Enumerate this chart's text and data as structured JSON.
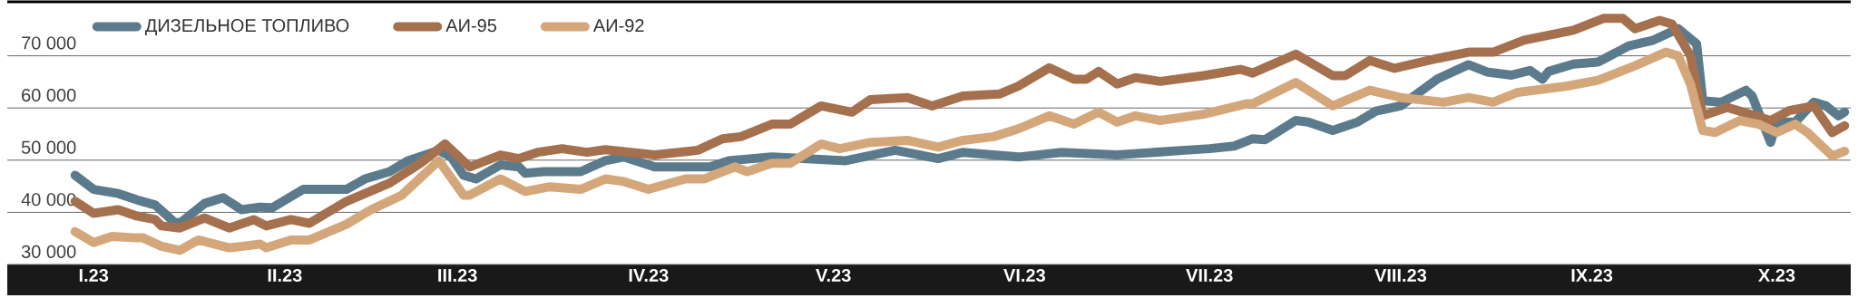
{
  "chart_data": {
    "type": "line",
    "xlim": [
      "2022-12-18",
      "2023-10-13"
    ],
    "ylim": [
      30000,
      80000
    ],
    "xticks": [
      {
        "value": "2023-01-01",
        "label": "I.23"
      },
      {
        "value": "2023-02-01",
        "label": "II.23"
      },
      {
        "value": "2023-03-01",
        "label": "III.23"
      },
      {
        "value": "2023-04-01",
        "label": "IV.23"
      },
      {
        "value": "2023-05-01",
        "label": "V.23"
      },
      {
        "value": "2023-06-01",
        "label": "VI.23"
      },
      {
        "value": "2023-07-01",
        "label": "VII.23"
      },
      {
        "value": "2023-08-01",
        "label": "VIII.23"
      },
      {
        "value": "2023-09-01",
        "label": "IX.23"
      },
      {
        "value": "2023-10-01",
        "label": "X.23"
      }
    ],
    "yticks": [
      {
        "value": 30000,
        "label": "30 000"
      },
      {
        "value": 40000,
        "label": "40 000"
      },
      {
        "value": 50000,
        "label": "50 000"
      },
      {
        "value": 60000,
        "label": "60 000"
      },
      {
        "value": 70000,
        "label": "70 000"
      }
    ],
    "grid": "y",
    "legend": "top left",
    "line_style": "solid",
    "series": [
      {
        "name": "ДИЗЕЛЬНОЕ ТОПЛИВО",
        "color": "#5b7b8c",
        "x": [
          "2022-12-29",
          "2023-01-01",
          "2023-01-05",
          "2023-01-08",
          "2023-01-11",
          "2023-01-14",
          "2023-01-15",
          "2023-01-19",
          "2023-01-22",
          "2023-01-25",
          "2023-01-28",
          "2023-01-30",
          "2023-02-04",
          "2023-02-09",
          "2023-02-11",
          "2023-02-14",
          "2023-02-18",
          "2023-02-21",
          "2023-02-26",
          "2023-02-28",
          "2023-03-02",
          "2023-03-04",
          "2023-03-08",
          "2023-03-11",
          "2023-03-12",
          "2023-03-15",
          "2023-03-21",
          "2023-03-25",
          "2023-03-28",
          "2023-04-02",
          "2023-04-11",
          "2023-04-14",
          "2023-04-21",
          "2023-04-26",
          "2023-05-03",
          "2023-05-11",
          "2023-05-18",
          "2023-05-22",
          "2023-05-31",
          "2023-06-07",
          "2023-06-16",
          "2023-06-27",
          "2023-07-01",
          "2023-07-05",
          "2023-07-08",
          "2023-07-10",
          "2023-07-15",
          "2023-07-17",
          "2023-07-21",
          "2023-07-25",
          "2023-07-28",
          "2023-08-01",
          "2023-08-07",
          "2023-08-12",
          "2023-08-15",
          "2023-08-19",
          "2023-08-22",
          "2023-08-24",
          "2023-08-25",
          "2023-08-29",
          "2023-09-02",
          "2023-09-07",
          "2023-09-11",
          "2023-09-15",
          "2023-09-18",
          "2023-09-19",
          "2023-09-22",
          "2023-09-26",
          "2023-09-27",
          "2023-09-30",
          "2023-10-01",
          "2023-10-04",
          "2023-10-07",
          "2023-10-09",
          "2023-10-11",
          "2023-10-12"
        ],
        "values": [
          47100,
          44400,
          43600,
          42400,
          41400,
          38200,
          37900,
          41700,
          42800,
          40500,
          41000,
          40900,
          44400,
          44400,
          44400,
          46400,
          47800,
          49900,
          51900,
          50600,
          47100,
          46400,
          49100,
          48700,
          47500,
          47800,
          47800,
          49900,
          50600,
          48700,
          48700,
          49900,
          50600,
          50300,
          49900,
          51900,
          50300,
          51500,
          50600,
          51500,
          51000,
          51900,
          52200,
          52700,
          54100,
          53900,
          57600,
          57300,
          55700,
          57300,
          59400,
          60400,
          65600,
          68300,
          66900,
          66300,
          67200,
          65500,
          67000,
          68400,
          68800,
          71900,
          73000,
          75200,
          72300,
          61400,
          61100,
          63400,
          62300,
          53400,
          57300,
          57300,
          61100,
          60400,
          58500,
          59200
        ]
      },
      {
        "name": "АИ-95",
        "color": "#a5704d",
        "x": [
          "2022-12-29",
          "2023-01-01",
          "2023-01-05",
          "2023-01-08",
          "2023-01-11",
          "2023-01-12",
          "2023-01-15",
          "2023-01-19",
          "2023-01-23",
          "2023-01-27",
          "2023-01-29",
          "2023-02-02",
          "2023-02-05",
          "2023-02-11",
          "2023-02-18",
          "2023-02-23",
          "2023-02-27",
          "2023-03-03",
          "2023-03-08",
          "2023-03-11",
          "2023-03-14",
          "2023-03-18",
          "2023-03-22",
          "2023-03-25",
          "2023-04-02",
          "2023-04-09",
          "2023-04-13",
          "2023-04-16",
          "2023-04-21",
          "2023-04-24",
          "2023-04-29",
          "2023-05-04",
          "2023-05-07",
          "2023-05-13",
          "2023-05-17",
          "2023-05-22",
          "2023-05-28",
          "2023-05-31",
          "2023-06-05",
          "2023-06-09",
          "2023-06-11",
          "2023-06-13",
          "2023-06-16",
          "2023-06-19",
          "2023-06-23",
          "2023-06-30",
          "2023-07-06",
          "2023-07-08",
          "2023-07-15",
          "2023-07-21",
          "2023-07-23",
          "2023-07-27",
          "2023-07-31",
          "2023-08-07",
          "2023-08-12",
          "2023-08-16",
          "2023-08-21",
          "2023-08-29",
          "2023-09-03",
          "2023-09-06",
          "2023-09-08",
          "2023-09-12",
          "2023-09-14",
          "2023-09-17",
          "2023-09-19",
          "2023-09-23",
          "2023-09-30",
          "2023-10-03",
          "2023-10-07",
          "2023-10-10",
          "2023-10-12"
        ],
        "values": [
          42100,
          39800,
          40500,
          39300,
          38600,
          37400,
          37000,
          38900,
          37000,
          38600,
          37400,
          38600,
          37900,
          42100,
          45600,
          49400,
          53100,
          48700,
          51000,
          50300,
          51500,
          52200,
          51500,
          52000,
          51000,
          51900,
          54100,
          54500,
          56900,
          56900,
          60400,
          59200,
          61600,
          62000,
          60400,
          62300,
          62700,
          64200,
          67700,
          65500,
          65500,
          67000,
          64600,
          65800,
          65100,
          66200,
          67400,
          66700,
          70300,
          66200,
          66200,
          69100,
          67600,
          69500,
          70700,
          70700,
          73000,
          74900,
          77200,
          77200,
          75200,
          76800,
          76100,
          70000,
          58500,
          60100,
          57600,
          59500,
          60400,
          55300,
          56600
        ]
      },
      {
        "name": "АИ-92",
        "color": "#d4a77b",
        "x": [
          "2022-12-29",
          "2023-01-01",
          "2023-01-04",
          "2023-01-08",
          "2023-01-09",
          "2023-01-12",
          "2023-01-15",
          "2023-01-18",
          "2023-01-23",
          "2023-01-28",
          "2023-01-29",
          "2023-02-02",
          "2023-02-05",
          "2023-02-11",
          "2023-02-15",
          "2023-02-20",
          "2023-02-26",
          "2023-03-02",
          "2023-03-03",
          "2023-03-08",
          "2023-03-12",
          "2023-03-16",
          "2023-03-21",
          "2023-03-25",
          "2023-03-28",
          "2023-04-01",
          "2023-04-07",
          "2023-04-10",
          "2023-04-15",
          "2023-04-17",
          "2023-04-21",
          "2023-04-24",
          "2023-04-29",
          "2023-05-02",
          "2023-05-07",
          "2023-05-13",
          "2023-05-18",
          "2023-05-22",
          "2023-05-27",
          "2023-05-31",
          "2023-06-05",
          "2023-06-09",
          "2023-06-13",
          "2023-06-16",
          "2023-06-19",
          "2023-06-23",
          "2023-06-30",
          "2023-07-07",
          "2023-07-08",
          "2023-07-15",
          "2023-07-21",
          "2023-07-27",
          "2023-08-01",
          "2023-08-08",
          "2023-08-12",
          "2023-08-16",
          "2023-08-20",
          "2023-08-28",
          "2023-09-02",
          "2023-09-08",
          "2023-09-13",
          "2023-09-15",
          "2023-09-17",
          "2023-09-19",
          "2023-09-21",
          "2023-09-25",
          "2023-09-28",
          "2023-10-01",
          "2023-10-04",
          "2023-10-06",
          "2023-10-10",
          "2023-10-12"
        ],
        "values": [
          36300,
          34200,
          35400,
          35100,
          35100,
          33500,
          32700,
          34700,
          33200,
          33900,
          33200,
          34700,
          34700,
          37700,
          40500,
          43300,
          49900,
          43300,
          43300,
          46400,
          44000,
          44900,
          44400,
          46400,
          45900,
          44400,
          46400,
          46400,
          48700,
          47800,
          49400,
          49400,
          53100,
          52200,
          53400,
          53800,
          52500,
          53800,
          54500,
          56000,
          58500,
          56900,
          59200,
          57300,
          58500,
          57600,
          58800,
          60800,
          60800,
          64900,
          60400,
          63400,
          62000,
          61100,
          62000,
          61100,
          63000,
          64200,
          65300,
          68100,
          70700,
          70000,
          64600,
          55700,
          55300,
          57600,
          56900,
          55300,
          56900,
          55300,
          50800,
          51700
        ]
      }
    ]
  }
}
